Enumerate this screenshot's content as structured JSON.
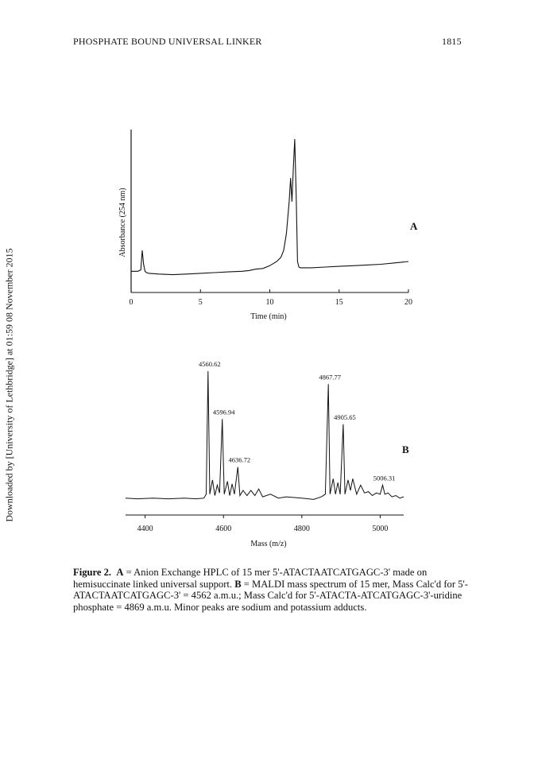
{
  "header": {
    "running_title": "PHOSPHATE BOUND UNIVERSAL LINKER",
    "page_number": "1815"
  },
  "sidebar_note": "Downloaded by [University of Lethbridge] at 01:59 08 November 2015",
  "caption": {
    "label": "Figure 2.",
    "a_tag": "A",
    "a_text": " = Anion Exchange HPLC of 15 mer 5'-ATACTAATCATGAGC-3' made on hemisuccinate linked universal support. ",
    "b_tag": "B",
    "b_text": " = MALDI mass spectrum of 15 mer, Mass Calc'd for 5'-ATACTAATCATGAGC-3' = 4562 a.m.u.; Mass Calc'd for 5'-ATACTA-ATCATGAGC-3'-uridine phosphate = 4869 a.m.u. Minor peaks are sodium and potassium adducts."
  },
  "chart_data": [
    {
      "panel": "A",
      "type": "line",
      "xlabel": "Time (min)",
      "ylabel": "Absorbance (254 nm)",
      "xlim": [
        0,
        20
      ],
      "xticks": [
        0,
        5,
        10,
        15,
        20
      ],
      "series": [
        {
          "x": [
            0,
            0.5,
            0.7,
            0.8,
            0.9,
            1.0,
            1.1,
            1.3,
            2,
            3,
            4,
            5,
            6,
            7,
            8,
            8.5,
            9,
            9.5,
            10,
            10.5,
            10.8,
            11.0,
            11.2,
            11.4,
            11.5,
            11.6,
            11.7,
            11.8,
            11.9,
            12.0,
            12.1,
            12.2,
            13,
            14,
            15,
            16,
            17,
            18,
            19,
            20
          ],
          "y": [
            0.05,
            0.05,
            0.06,
            0.2,
            0.1,
            0.05,
            0.04,
            0.035,
            0.03,
            0.025,
            0.03,
            0.035,
            0.04,
            0.045,
            0.05,
            0.055,
            0.065,
            0.07,
            0.09,
            0.12,
            0.15,
            0.2,
            0.32,
            0.55,
            0.72,
            0.55,
            0.8,
            1.0,
            0.6,
            0.12,
            0.08,
            0.075,
            0.075,
            0.08,
            0.085,
            0.09,
            0.095,
            0.1,
            0.11,
            0.12
          ]
        }
      ]
    },
    {
      "panel": "B",
      "type": "line",
      "xlabel": "Mass (m/z)",
      "xlim": [
        4350,
        5060
      ],
      "xticks": [
        4400,
        4600,
        4800,
        5000
      ],
      "peak_labels": [
        {
          "x": 4560.62,
          "label": "4560.62"
        },
        {
          "x": 4596.94,
          "label": "4596.94"
        },
        {
          "x": 4636.72,
          "label": "4636.72"
        },
        {
          "x": 4867.77,
          "label": "4867.77"
        },
        {
          "x": 4905.65,
          "label": "4905.65"
        },
        {
          "x": 5006.31,
          "label": "5006.31"
        }
      ],
      "series": [
        {
          "x": [
            4350,
            4380,
            4420,
            4460,
            4500,
            4530,
            4550,
            4556,
            4560.62,
            4565,
            4572,
            4578,
            4584,
            4590,
            4596.94,
            4602,
            4610,
            4616,
            4622,
            4628,
            4636.72,
            4642,
            4650,
            4660,
            4670,
            4680,
            4690,
            4700,
            4720,
            4740,
            4760,
            4800,
            4830,
            4850,
            4860,
            4867.77,
            4872,
            4880,
            4886,
            4892,
            4898,
            4905.65,
            4910,
            4918,
            4924,
            4930,
            4940,
            4950,
            4960,
            4970,
            4980,
            4990,
            5000,
            5006.31,
            5012,
            5020,
            5030,
            5040,
            5050,
            5060
          ],
          "y": [
            0.02,
            0.015,
            0.02,
            0.015,
            0.02,
            0.015,
            0.02,
            0.05,
            1.0,
            0.05,
            0.16,
            0.04,
            0.12,
            0.06,
            0.63,
            0.05,
            0.15,
            0.04,
            0.13,
            0.05,
            0.26,
            0.04,
            0.08,
            0.04,
            0.08,
            0.04,
            0.09,
            0.03,
            0.05,
            0.02,
            0.03,
            0.02,
            0.01,
            0.03,
            0.05,
            0.9,
            0.05,
            0.17,
            0.05,
            0.14,
            0.05,
            0.59,
            0.05,
            0.16,
            0.08,
            0.17,
            0.05,
            0.12,
            0.06,
            0.07,
            0.04,
            0.06,
            0.05,
            0.12,
            0.05,
            0.06,
            0.03,
            0.04,
            0.02,
            0.03
          ]
        }
      ]
    }
  ]
}
